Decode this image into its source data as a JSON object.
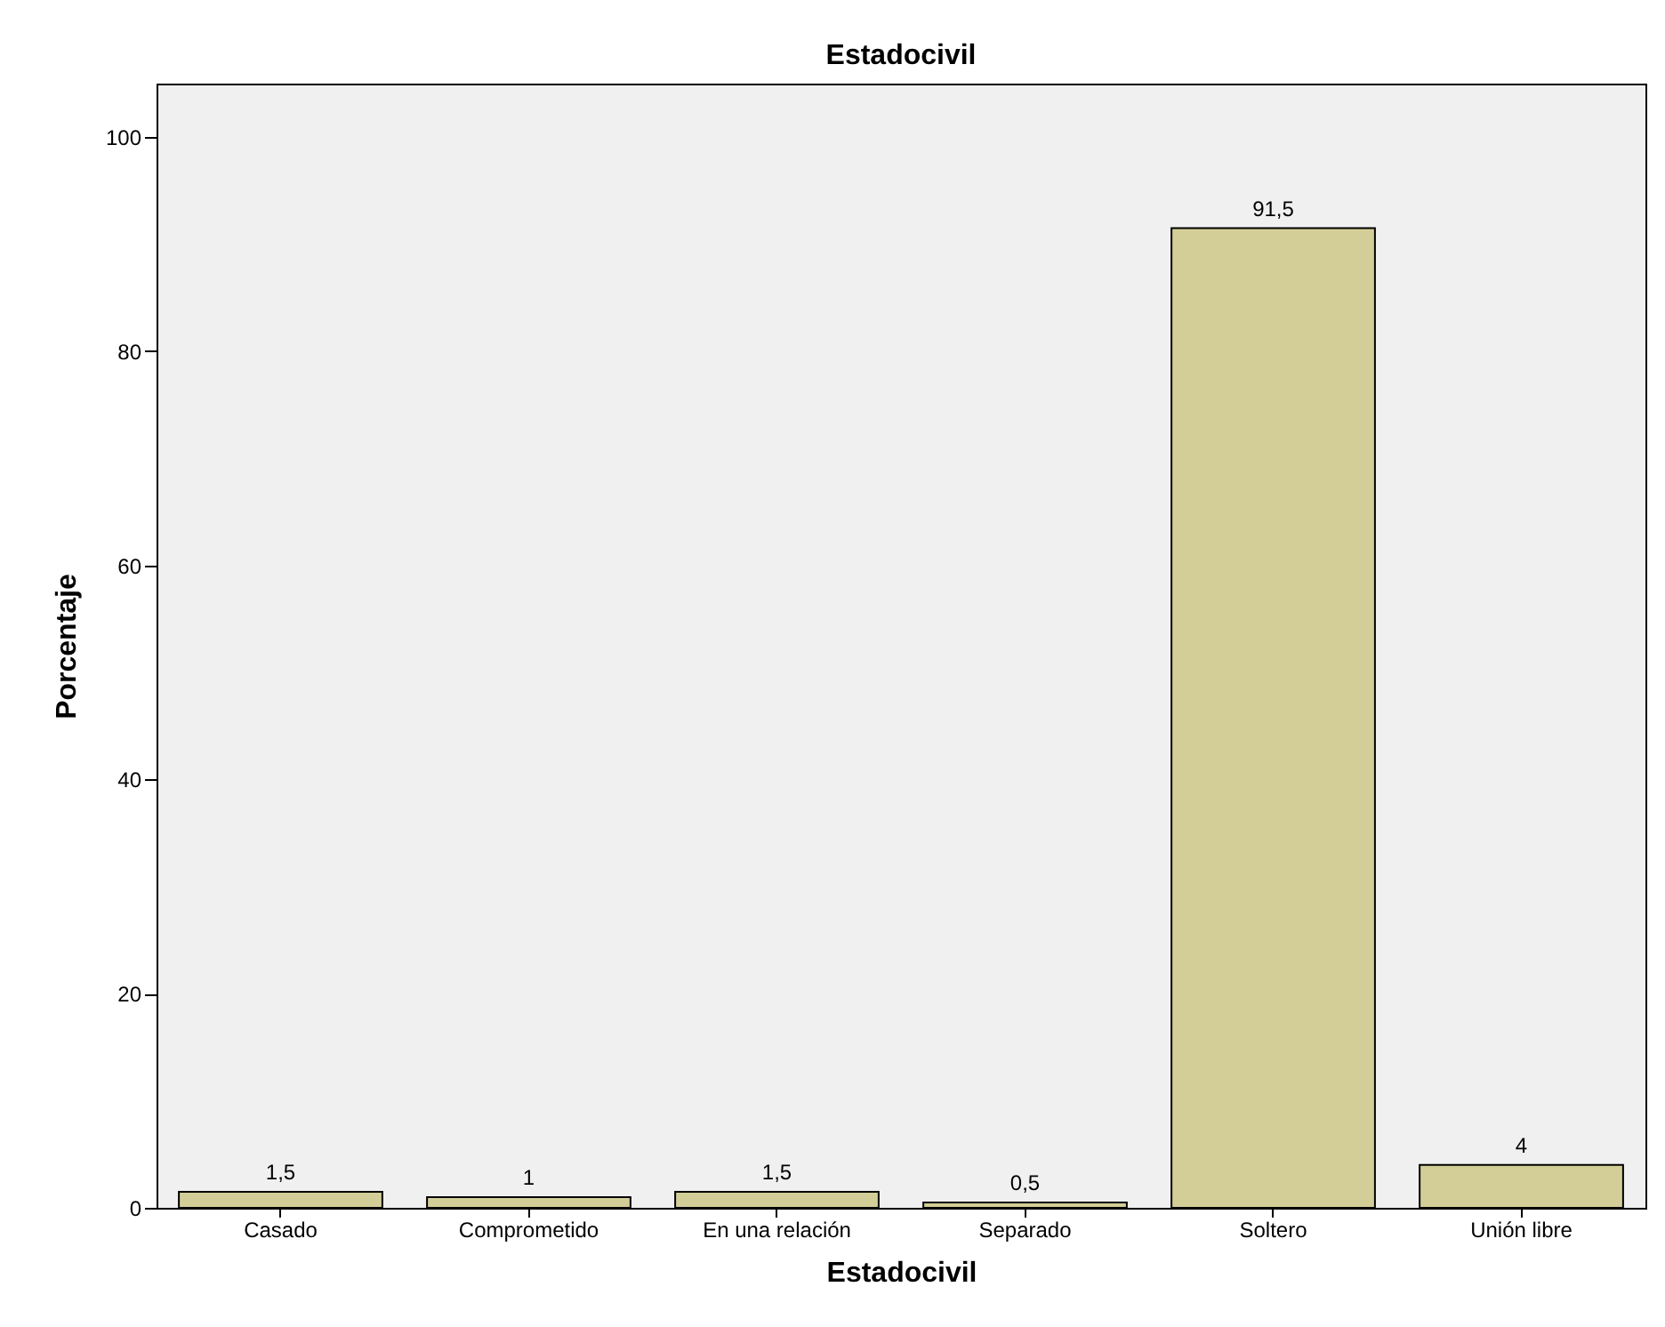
{
  "chart_data": {
    "type": "bar",
    "title": "Estadocivil",
    "xlabel": "Estadocivil",
    "ylabel": "Porcentaje",
    "categories": [
      "Casado",
      "Comprometido",
      "En una relación",
      "Separado",
      "Soltero",
      "Unión libre"
    ],
    "values": [
      1.5,
      1,
      1.5,
      0.5,
      91.5,
      4
    ],
    "value_labels": [
      "1,5",
      "1",
      "1,5",
      "0,5",
      "91,5",
      "4"
    ],
    "color": "#d3ce97",
    "ylim": [
      0,
      105
    ],
    "yticks": [
      0,
      20,
      40,
      60,
      80,
      100
    ],
    "grid": false
  }
}
